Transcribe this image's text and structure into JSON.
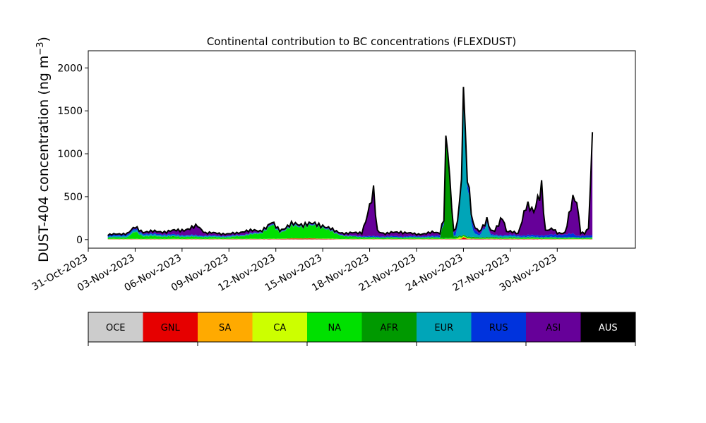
{
  "chart_data": {
    "type": "area",
    "stacked": true,
    "title": "Continental contribution to BC concentrations (FLEXDUST)",
    "ylabel_main": "DUST-404 concentration (ng m",
    "ylabel_sup": "−3",
    "ylabel_close": ")",
    "xlabel": "",
    "ylim": [
      -100,
      2200
    ],
    "yticks": [
      0,
      500,
      1000,
      1500,
      2000
    ],
    "xlim": [
      "2023-10-31T00:00",
      "2023-12-05T00:00"
    ],
    "xticks": [
      "31-Oct-2023",
      "03-Nov-2023",
      "06-Nov-2023",
      "09-Nov-2023",
      "12-Nov-2023",
      "15-Nov-2023",
      "18-Nov-2023",
      "21-Nov-2023",
      "24-Nov-2023",
      "27-Nov-2023",
      "30-Nov-2023"
    ],
    "grid": false,
    "legend": {
      "placement": "bottom",
      "entries": [
        {
          "label": "OCE",
          "color": "#cccccc"
        },
        {
          "label": "GNL",
          "color": "#e60000"
        },
        {
          "label": "SA",
          "color": "#ffaa00"
        },
        {
          "label": "CA",
          "color": "#ccff00"
        },
        {
          "label": "NA",
          "color": "#00e000"
        },
        {
          "label": "AFR",
          "color": "#009900"
        },
        {
          "label": "EUR",
          "color": "#00a5b8"
        },
        {
          "label": "RUS",
          "color": "#0033dd"
        },
        {
          "label": "ASI",
          "color": "#660099"
        },
        {
          "label": "AUS",
          "color": "#000000"
        }
      ]
    },
    "total_outline_color": "#000000",
    "series_profiles": [
      {
        "name": "OCE",
        "points": [
          [
            "2023-11-01T06:00",
            3
          ],
          [
            "2023-12-01T06:00",
            3
          ]
        ]
      },
      {
        "name": "GNL",
        "points": [
          [
            "2023-11-01T06:00",
            2
          ],
          [
            "2023-11-12T00:00",
            3
          ],
          [
            "2023-11-13T00:00",
            8
          ],
          [
            "2023-11-14T00:00",
            10
          ],
          [
            "2023-11-15T00:00",
            6
          ],
          [
            "2023-11-16T00:00",
            2
          ],
          [
            "2023-11-23T20:00",
            3
          ],
          [
            "2023-11-24T00:00",
            25
          ],
          [
            "2023-11-24T06:00",
            5
          ],
          [
            "2023-12-01T06:00",
            2
          ]
        ]
      },
      {
        "name": "SA",
        "points": [
          [
            "2023-11-01T06:00",
            1
          ],
          [
            "2023-12-01T06:00",
            1
          ]
        ]
      },
      {
        "name": "CA",
        "points": [
          [
            "2023-11-01T06:00",
            2
          ],
          [
            "2023-11-23T12:00",
            2
          ],
          [
            "2023-11-23T18:00",
            20
          ],
          [
            "2023-11-24T00:00",
            12
          ],
          [
            "2023-11-24T12:00",
            2
          ],
          [
            "2023-12-01T06:00",
            2
          ]
        ]
      },
      {
        "name": "NA",
        "points": [
          [
            "2023-11-01T06:00",
            12
          ],
          [
            "2023-11-02T12:00",
            18
          ],
          [
            "2023-11-03T00:00",
            80
          ],
          [
            "2023-11-03T12:00",
            30
          ],
          [
            "2023-11-05T00:00",
            25
          ],
          [
            "2023-11-07T00:00",
            20
          ],
          [
            "2023-11-09T00:00",
            15
          ],
          [
            "2023-11-10T00:00",
            35
          ],
          [
            "2023-11-11T00:00",
            60
          ],
          [
            "2023-11-11T18:00",
            150
          ],
          [
            "2023-11-12T06:00",
            70
          ],
          [
            "2023-11-13T00:00",
            130
          ],
          [
            "2023-11-14T00:00",
            140
          ],
          [
            "2023-11-15T00:00",
            130
          ],
          [
            "2023-11-15T18:00",
            60
          ],
          [
            "2023-11-16T12:00",
            25
          ],
          [
            "2023-11-18T00:00",
            12
          ],
          [
            "2023-11-20T00:00",
            10
          ],
          [
            "2023-11-23T00:00",
            10
          ],
          [
            "2023-11-25T00:00",
            8
          ],
          [
            "2023-12-01T06:00",
            8
          ]
        ]
      },
      {
        "name": "AFR",
        "points": [
          [
            "2023-11-01T06:00",
            3
          ],
          [
            "2023-11-22T12:00",
            5
          ],
          [
            "2023-11-22T18:00",
            200
          ],
          [
            "2023-11-22T22:00",
            1300
          ],
          [
            "2023-11-23T02:00",
            700
          ],
          [
            "2023-11-23T08:00",
            20
          ],
          [
            "2023-11-23T16:00",
            10
          ],
          [
            "2023-12-01T06:00",
            5
          ]
        ]
      },
      {
        "name": "EUR",
        "points": [
          [
            "2023-11-01T06:00",
            10
          ],
          [
            "2023-11-03T00:00",
            20
          ],
          [
            "2023-11-05T00:00",
            15
          ],
          [
            "2023-11-07T00:00",
            10
          ],
          [
            "2023-11-18T06:00",
            5
          ],
          [
            "2023-11-23T12:00",
            10
          ],
          [
            "2023-11-23T20:00",
            400
          ],
          [
            "2023-11-24T00:00",
            1700
          ],
          [
            "2023-11-24T06:00",
            600
          ],
          [
            "2023-11-24T14:00",
            60
          ],
          [
            "2023-11-25T00:00",
            20
          ],
          [
            "2023-11-25T12:00",
            150
          ],
          [
            "2023-11-25T18:00",
            20
          ],
          [
            "2023-11-28T00:00",
            10
          ],
          [
            "2023-12-01T06:00",
            5
          ]
        ]
      },
      {
        "name": "RUS",
        "points": [
          [
            "2023-11-01T06:00",
            15
          ],
          [
            "2023-11-05T00:00",
            10
          ],
          [
            "2023-11-10T00:00",
            5
          ],
          [
            "2023-11-17T00:00",
            5
          ],
          [
            "2023-11-18T00:00",
            10
          ],
          [
            "2023-11-22T00:00",
            8
          ],
          [
            "2023-11-24T12:00",
            60
          ],
          [
            "2023-11-25T00:00",
            20
          ],
          [
            "2023-11-26T00:00",
            10
          ],
          [
            "2023-11-29T00:00",
            20
          ],
          [
            "2023-11-30T06:00",
            30
          ],
          [
            "2023-12-01T00:00",
            40
          ],
          [
            "2023-12-01T06:00",
            20
          ]
        ]
      },
      {
        "name": "ASI",
        "points": [
          [
            "2023-11-01T06:00",
            5
          ],
          [
            "2023-11-03T00:00",
            15
          ],
          [
            "2023-11-05T00:00",
            30
          ],
          [
            "2023-11-06T12:00",
            70
          ],
          [
            "2023-11-07T00:00",
            110
          ],
          [
            "2023-11-07T12:00",
            30
          ],
          [
            "2023-11-09T12:00",
            20
          ],
          [
            "2023-11-10T00:00",
            40
          ],
          [
            "2023-11-11T00:00",
            15
          ],
          [
            "2023-11-15T00:00",
            10
          ],
          [
            "2023-11-16T00:00",
            15
          ],
          [
            "2023-11-17T12:00",
            40
          ],
          [
            "2023-11-18T00:00",
            330
          ],
          [
            "2023-11-18T06:00",
            480
          ],
          [
            "2023-11-18T12:00",
            60
          ],
          [
            "2023-11-19T00:00",
            30
          ],
          [
            "2023-11-20T00:00",
            50
          ],
          [
            "2023-11-21T00:00",
            20
          ],
          [
            "2023-11-22T00:00",
            40
          ],
          [
            "2023-11-22T18:00",
            20
          ],
          [
            "2023-11-25T00:00",
            30
          ],
          [
            "2023-11-26T00:00",
            40
          ],
          [
            "2023-11-26T12:00",
            230
          ],
          [
            "2023-11-26T18:00",
            40
          ],
          [
            "2023-11-27T12:00",
            20
          ],
          [
            "2023-11-28T00:00",
            350
          ],
          [
            "2023-11-28T12:00",
            250
          ],
          [
            "2023-11-29T00:00",
            600
          ],
          [
            "2023-11-29T06:00",
            50
          ],
          [
            "2023-11-29T18:00",
            60
          ],
          [
            "2023-11-30T00:00",
            20
          ],
          [
            "2023-11-30T12:00",
            20
          ],
          [
            "2023-12-01T00:00",
            380
          ],
          [
            "2023-12-01T06:00",
            400
          ],
          [
            "2023-12-01T12:00",
            40
          ],
          [
            "2023-12-01T18:00",
            30
          ],
          [
            "2023-12-02T00:00",
            80
          ],
          [
            "2023-12-02T06:00",
            1040
          ],
          [
            "2023-12-02T08:00",
            60
          ]
        ]
      },
      {
        "name": "AUS",
        "points": [
          [
            "2023-11-01T06:00",
            1
          ],
          [
            "2023-12-02T08:00",
            1
          ]
        ]
      }
    ]
  }
}
